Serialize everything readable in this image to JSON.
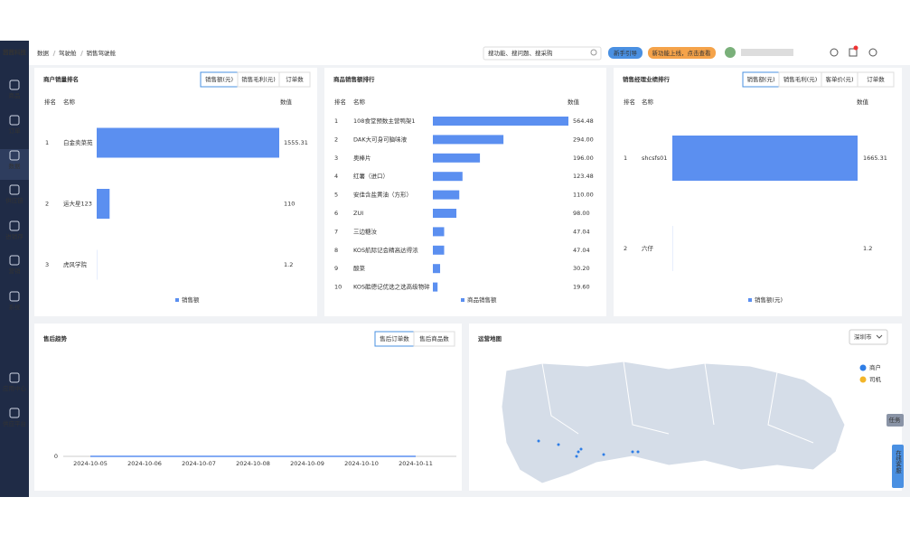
{
  "sidebar": {
    "logo": "茜茜科技",
    "items": [
      "商品",
      "订单",
      "数据",
      "供应链",
      "进销存",
      "营销",
      "系统",
      "应用中心",
      "供应平台"
    ],
    "active": 2
  },
  "topbar": {
    "breadcrumb": [
      "数据",
      "驾驶舱",
      "销售驾驶舱"
    ],
    "search_placeholder": "搜功能、搜问题、搜采购",
    "guide_button": "新手引导",
    "new_button": "新功能上线，点击查看"
  },
  "side_tabs": [
    "任务",
    "在线客服"
  ],
  "chart_data": [
    {
      "type": "bar",
      "title": "商户销量排名",
      "tabs": [
        "销售额(元)",
        "销售毛利(元)",
        "订单数"
      ],
      "active_tab": 0,
      "headers": [
        "排名",
        "名称",
        "数值"
      ],
      "ranks": [
        "1",
        "2",
        "3"
      ],
      "categories": [
        "白金卖菜苑",
        "运大星123",
        "虎风学院"
      ],
      "values": [
        1555.31,
        110,
        1.2
      ],
      "legend": "销售额",
      "color": "#5b8ff0"
    },
    {
      "type": "bar",
      "title": "商品销售额排行",
      "headers": [
        "排名",
        "名称",
        "数值"
      ],
      "ranks": [
        "1",
        "2",
        "3",
        "4",
        "5",
        "6",
        "7",
        "8",
        "9",
        "10"
      ],
      "categories": [
        "108食堂预数主营鸭架1",
        "DAK大可身可脑味液",
        "奥棒片",
        "红薯（进口）",
        "安佳含盐黄油（方形）",
        "ZUI",
        "三边糖汝",
        "KOS航际记会精高达得浓",
        "酸菜",
        "KOS酷德记优选之选高级物碎"
      ],
      "values": [
        564.48,
        294,
        196,
        123.48,
        110,
        98,
        47.04,
        47.04,
        30.2,
        19.6
      ],
      "value_labels": [
        "564.48",
        "294.00",
        "196.00",
        "123.48",
        "110.00",
        "98.00",
        "47.04",
        "47.04",
        "30.20",
        "19.60"
      ],
      "legend": "商品销售额",
      "color": "#5b8ff0"
    },
    {
      "type": "bar",
      "title": "销售经理业绩排行",
      "tabs": [
        "销售额(元)",
        "销售毛利(元)",
        "客单价(元)",
        "订单数"
      ],
      "active_tab": 0,
      "headers": [
        "排名",
        "名称",
        "数值"
      ],
      "ranks": [
        "1",
        "2"
      ],
      "categories": [
        "shcsfs01",
        "六仔"
      ],
      "values": [
        1665.31,
        1.2
      ],
      "legend": "销售额(元)",
      "color": "#5b8ff0"
    },
    {
      "type": "line",
      "title": "售后趋势",
      "tabs": [
        "售后订单数",
        "售后商品数"
      ],
      "active_tab": 0,
      "categories": [
        "2024-10-05",
        "2024-10-06",
        "2024-10-07",
        "2024-10-08",
        "2024-10-09",
        "2024-10-10",
        "2024-10-11"
      ],
      "values": [
        0,
        0,
        0,
        0,
        0,
        0,
        0
      ],
      "ylim": [
        0,
        1
      ],
      "yticks": [
        0
      ],
      "color": "#5b8ff0"
    },
    {
      "type": "map",
      "title": "运营地图",
      "region": "深圳市",
      "legend": [
        {
          "name": "商户",
          "color": "#2f7ee6"
        },
        {
          "name": "司机",
          "color": "#f2b52a"
        }
      ]
    }
  ]
}
